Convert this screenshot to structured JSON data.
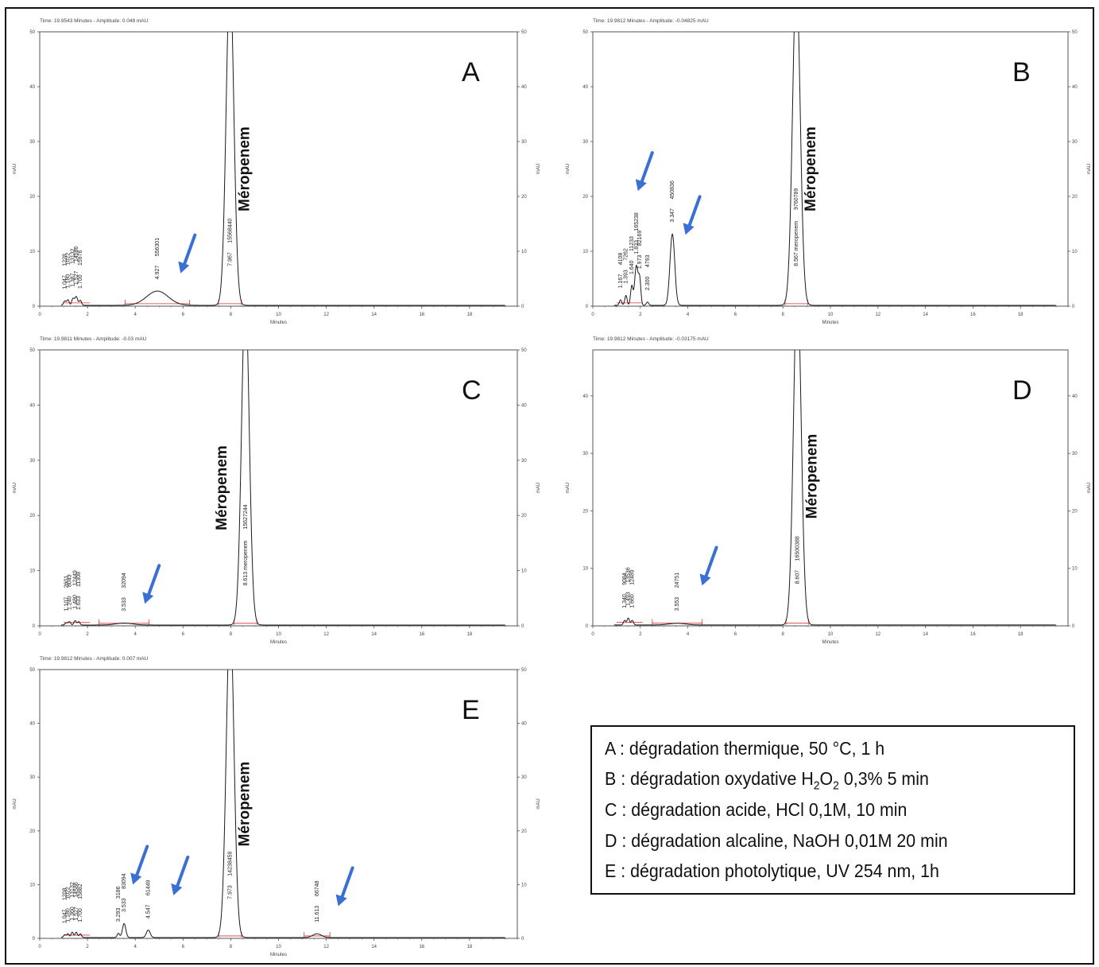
{
  "panels": [
    {
      "id": "A",
      "letter": "A",
      "header": "Time:  19.9543 Minutes - Amplitude:  0.048 mAU",
      "y_label": "mAU",
      "x_label": "Minutes",
      "compound_label": "Méropenem",
      "x_ticks": [
        "0",
        "2",
        "4",
        "6",
        "8",
        "10",
        "12",
        "14",
        "16",
        "18"
      ],
      "y_ticks": [
        "0",
        "10",
        "20",
        "30",
        "40",
        "50"
      ],
      "xlim": [
        0,
        20
      ],
      "ylim": [
        0,
        50
      ],
      "peaks": [
        {
          "rt": 1.047,
          "height": 0.8,
          "width": 0.05
        },
        {
          "rt": 1.18,
          "height": 1.0,
          "width": 0.05
        },
        {
          "rt": 1.387,
          "height": 1.2,
          "width": 0.05
        },
        {
          "rt": 1.527,
          "height": 1.6,
          "width": 0.06
        },
        {
          "rt": 1.7,
          "height": 0.9,
          "width": 0.05
        },
        {
          "rt": 4.927,
          "height": 2.6,
          "width": 0.45
        },
        {
          "rt": 7.967,
          "height": 60,
          "width": 0.16
        }
      ],
      "peak_labels": [
        {
          "rt_text": "1.047",
          "area_text": "1228",
          "rt": 1.047
        },
        {
          "rt_text": "1.180",
          "area_text": "1022",
          "rt": 1.18
        },
        {
          "rt_text": "1.387",
          "area_text": "13132",
          "rt": 1.387
        },
        {
          "rt_text": "1.527",
          "area_text": "14586",
          "rt": 1.527
        },
        {
          "rt_text": "1.700",
          "area_text": "15976",
          "rt": 1.7
        },
        {
          "rt_text": "4.927",
          "area_text": "556301",
          "rt": 4.927
        },
        {
          "rt_text": "7.967",
          "area_text": "15568440",
          "rt": 7.967
        }
      ],
      "arrows": [
        {
          "rt": 5.9,
          "level": 6
        }
      ]
    },
    {
      "id": "B",
      "letter": "B",
      "header": "Time:  19.9812 Minutes - Amplitude:  -0.04825 mAU",
      "y_label": "mAU",
      "x_label": "Minutes",
      "compound_label": "Méropenem",
      "x_ticks": [
        "0",
        "2",
        "4",
        "6",
        "8",
        "10",
        "12",
        "14",
        "16",
        "18"
      ],
      "y_ticks": [
        "0",
        "10",
        "20",
        "30",
        "40",
        "50"
      ],
      "xlim": [
        0,
        20
      ],
      "ylim": [
        0,
        50
      ],
      "peaks": [
        {
          "rt": 1.167,
          "height": 1.0,
          "width": 0.05
        },
        {
          "rt": 1.393,
          "height": 1.8,
          "width": 0.05
        },
        {
          "rt": 1.64,
          "height": 3.5,
          "width": 0.05
        },
        {
          "rt": 1.833,
          "height": 7.2,
          "width": 0.07
        },
        {
          "rt": 1.973,
          "height": 4.5,
          "width": 0.05
        },
        {
          "rt": 2.3,
          "height": 0.6,
          "width": 0.05
        },
        {
          "rt": 3.347,
          "height": 13,
          "width": 0.1
        },
        {
          "rt": 8.567,
          "height": 60,
          "width": 0.16
        }
      ],
      "peak_labels": [
        {
          "rt_text": "1.167",
          "area_text": "4108",
          "rt": 1.167
        },
        {
          "rt_text": "1.393",
          "area_text": "7262",
          "rt": 1.393
        },
        {
          "rt_text": "1.640",
          "area_text": "11233",
          "rt": 1.64
        },
        {
          "rt_text": "1.833",
          "area_text": "165238",
          "rt": 1.833
        },
        {
          "rt_text": "1.973",
          "area_text": "82169",
          "rt": 1.973
        },
        {
          "rt_text": "2.300",
          "area_text": "4793",
          "rt": 2.3
        },
        {
          "rt_text": "3.347",
          "area_text": "450836",
          "rt": 3.347
        },
        {
          "rt_text": "8.567  meropenem",
          "area_text": "9760789",
          "rt": 8.567
        }
      ],
      "arrows": [
        {
          "rt": 1.9,
          "level": 21
        },
        {
          "rt": 3.9,
          "level": 13
        }
      ]
    },
    {
      "id": "C",
      "letter": "C",
      "header": "Time:  19.9811 Minutes - Amplitude:  -0.03 mAU",
      "y_label": "mAU",
      "x_label": "Minutes",
      "compound_label": "Méropenem",
      "x_ticks": [
        "0",
        "2",
        "4",
        "6",
        "8",
        "10",
        "12",
        "14",
        "16",
        "18"
      ],
      "y_ticks": [
        "0",
        "10",
        "20",
        "30",
        "40",
        "50"
      ],
      "xlim": [
        0,
        20
      ],
      "ylim": [
        0,
        50
      ],
      "peaks": [
        {
          "rt": 1.107,
          "height": 0.4,
          "width": 0.05
        },
        {
          "rt": 1.24,
          "height": 0.6,
          "width": 0.05
        },
        {
          "rt": 1.48,
          "height": 0.8,
          "width": 0.05
        },
        {
          "rt": 1.633,
          "height": 0.6,
          "width": 0.05
        },
        {
          "rt": 3.533,
          "height": 0.35,
          "width": 0.35
        },
        {
          "rt": 8.613,
          "height": 60,
          "width": 0.16
        }
      ],
      "peak_labels": [
        {
          "rt_text": "1.107",
          "area_text": "2601",
          "rt": 1.107
        },
        {
          "rt_text": "1.240",
          "area_text": "8043",
          "rt": 1.24
        },
        {
          "rt_text": "1.480",
          "area_text": "12449",
          "rt": 1.48
        },
        {
          "rt_text": "1.633",
          "area_text": "11308",
          "rt": 1.633
        },
        {
          "rt_text": "3.533",
          "area_text": "32094",
          "rt": 3.533
        },
        {
          "rt_text": "8.613  meropenem",
          "area_text": "15627244",
          "rt": 8.613
        }
      ],
      "arrows": [
        {
          "rt": 4.4,
          "level": 4
        }
      ]
    },
    {
      "id": "D",
      "letter": "D",
      "header": "Time:  19.9812 Minutes - Amplitude:  -0.03175 mAU",
      "y_label": "mAU",
      "x_label": "Minutes",
      "compound_label": "Méropenem",
      "x_ticks": [
        "0",
        "2",
        "4",
        "6",
        "8",
        "10",
        "12",
        "14",
        "16",
        "18"
      ],
      "y_ticks": [
        "0",
        "10",
        "20",
        "30",
        "40"
      ],
      "xlim": [
        0,
        20
      ],
      "ylim": [
        0,
        48
      ],
      "peaks": [
        {
          "rt": 1.34,
          "height": 0.8,
          "width": 0.05
        },
        {
          "rt": 1.493,
          "height": 1.2,
          "width": 0.05
        },
        {
          "rt": 1.66,
          "height": 0.8,
          "width": 0.05
        },
        {
          "rt": 3.553,
          "height": 0.3,
          "width": 0.35
        },
        {
          "rt": 8.607,
          "height": 60,
          "width": 0.16
        }
      ],
      "peak_labels": [
        {
          "rt_text": "1.340",
          "area_text": "9084",
          "rt": 1.34
        },
        {
          "rt_text": "1.493",
          "area_text": "13536",
          "rt": 1.493
        },
        {
          "rt_text": "1.660",
          "area_text": "12489",
          "rt": 1.66
        },
        {
          "rt_text": "3.553",
          "area_text": "24751",
          "rt": 3.553
        },
        {
          "rt_text": "8.607",
          "area_text": "16500388",
          "rt": 8.607
        }
      ],
      "arrows": [
        {
          "rt": 4.6,
          "level": 7
        }
      ]
    },
    {
      "id": "E",
      "letter": "E",
      "header": "Time:  19.9812 Minutes - Amplitude:  0.007 mAU",
      "y_label": "mAU",
      "x_label": "Minutes",
      "compound_label": "Méropenem",
      "x_ticks": [
        "0",
        "2",
        "4",
        "6",
        "8",
        "10",
        "12",
        "14",
        "16",
        "18"
      ],
      "y_ticks": [
        "0",
        "10",
        "20",
        "30",
        "40",
        "50"
      ],
      "xlim": [
        0,
        20
      ],
      "ylim": [
        0,
        50
      ],
      "peaks": [
        {
          "rt": 1.047,
          "height": 0.5,
          "width": 0.05
        },
        {
          "rt": 1.18,
          "height": 0.7,
          "width": 0.05
        },
        {
          "rt": 1.36,
          "height": 1.0,
          "width": 0.05
        },
        {
          "rt": 1.527,
          "height": 1.0,
          "width": 0.05
        },
        {
          "rt": 1.7,
          "height": 0.7,
          "width": 0.05
        },
        {
          "rt": 3.293,
          "height": 0.8,
          "width": 0.05
        },
        {
          "rt": 3.533,
          "height": 2.6,
          "width": 0.07
        },
        {
          "rt": 4.547,
          "height": 1.4,
          "width": 0.08
        },
        {
          "rt": 7.973,
          "height": 60,
          "width": 0.16
        },
        {
          "rt": 11.613,
          "height": 0.7,
          "width": 0.18
        }
      ],
      "peak_labels": [
        {
          "rt_text": "1.047",
          "area_text": "1208",
          "rt": 1.047
        },
        {
          "rt_text": "1.180",
          "area_text": "1022",
          "rt": 1.18
        },
        {
          "rt_text": "1.360",
          "area_text": "13132",
          "rt": 1.36
        },
        {
          "rt_text": "1.527",
          "area_text": "14586",
          "rt": 1.527
        },
        {
          "rt_text": "1.700",
          "area_text": "15882",
          "rt": 1.7
        },
        {
          "rt_text": "3.293",
          "area_text": "3186",
          "rt": 3.293
        },
        {
          "rt_text": "3.533",
          "area_text": "83094",
          "rt": 3.533
        },
        {
          "rt_text": "4.547",
          "area_text": "61449",
          "rt": 4.547
        },
        {
          "rt_text": "7.973",
          "area_text": "14238459",
          "rt": 7.973
        },
        {
          "rt_text": "11.613",
          "area_text": "66748",
          "rt": 11.613
        }
      ],
      "arrows": [
        {
          "rt": 3.9,
          "level": 10
        },
        {
          "rt": 5.6,
          "level": 8
        },
        {
          "rt": 12.5,
          "level": 6
        }
      ]
    }
  ],
  "legend": [
    {
      "prefix": "A : dégradation thermique, 50 °C, 1 h"
    },
    {
      "prefix": "B : dégradation oxydative H",
      "sub1": "2",
      "mid": "O",
      "sub2": "2",
      "suffix": " 0,3% 5 min"
    },
    {
      "prefix": "C : dégradation acide, HCl 0,1M, 10 min"
    },
    {
      "prefix": "D : dégradation alcaline, NaOH 0,01M 20 min"
    },
    {
      "prefix": "E : dégradation photolytique, UV 254 nm, 1h"
    }
  ],
  "colors": {
    "trace": "#1a1a1a",
    "baseline": "#e03030",
    "arrow": "#3a6fd4",
    "axis": "#555555"
  },
  "chart_data": [
    {
      "type": "line",
      "title": "A",
      "xlabel": "Minutes",
      "ylabel": "mAU",
      "xlim": [
        0,
        20
      ],
      "ylim": [
        0,
        50
      ],
      "peaks_rt": [
        1.047,
        1.18,
        1.387,
        1.527,
        1.7,
        4.927,
        7.967
      ],
      "peak_areas": [
        1228,
        1022,
        13132,
        14586,
        15976,
        556301,
        15568440
      ]
    },
    {
      "type": "line",
      "title": "B",
      "xlabel": "Minutes",
      "ylabel": "mAU",
      "xlim": [
        0,
        20
      ],
      "ylim": [
        0,
        50
      ],
      "peaks_rt": [
        1.167,
        1.393,
        1.64,
        1.833,
        1.973,
        2.3,
        3.347,
        8.567
      ],
      "peak_areas": [
        4108,
        7262,
        11233,
        165238,
        82169,
        4793,
        450836,
        9760789
      ]
    },
    {
      "type": "line",
      "title": "C",
      "xlabel": "Minutes",
      "ylabel": "mAU",
      "xlim": [
        0,
        20
      ],
      "ylim": [
        0,
        50
      ],
      "peaks_rt": [
        1.107,
        1.24,
        1.48,
        1.633,
        3.533,
        8.613
      ],
      "peak_areas": [
        2601,
        8043,
        12449,
        11308,
        32094,
        15627244
      ]
    },
    {
      "type": "line",
      "title": "D",
      "xlabel": "Minutes",
      "ylabel": "mAU",
      "xlim": [
        0,
        20
      ],
      "ylim": [
        0,
        48
      ],
      "peaks_rt": [
        1.34,
        1.493,
        1.66,
        3.553,
        8.607
      ],
      "peak_areas": [
        9084,
        13536,
        12489,
        24751,
        16500388
      ]
    },
    {
      "type": "line",
      "title": "E",
      "xlabel": "Minutes",
      "ylabel": "mAU",
      "xlim": [
        0,
        20
      ],
      "ylim": [
        0,
        50
      ],
      "peaks_rt": [
        1.047,
        1.18,
        1.36,
        1.527,
        1.7,
        3.293,
        3.533,
        4.547,
        7.973,
        11.613
      ],
      "peak_areas": [
        1208,
        1022,
        13132,
        14586,
        15882,
        3186,
        83094,
        61449,
        14238459,
        66748
      ]
    }
  ]
}
